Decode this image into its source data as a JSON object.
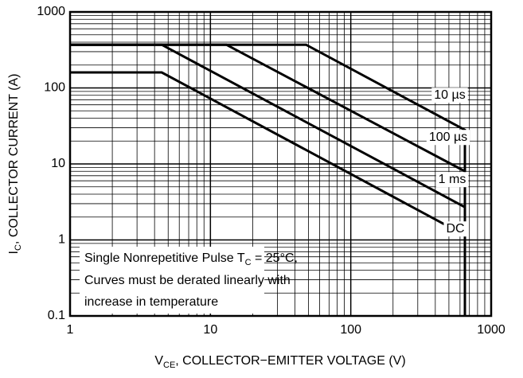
{
  "chart_data": {
    "type": "line",
    "xlabel": [
      "V",
      "CE",
      ", COLLECTOR−EMITTER VOLTAGE (V)"
    ],
    "ylabel": [
      "I",
      "C",
      ", COLLECTOR CURRENT (A)"
    ],
    "annotation": [
      [
        "Single Nonrepetitive Pulse T",
        "C",
        " = 25°C,"
      ],
      [
        "Curves must be derated linearly with"
      ],
      [
        "increase in temperature"
      ]
    ],
    "xlim": [
      1,
      1000
    ],
    "ylim": [
      0.1,
      1000
    ],
    "xticks": [
      1,
      10,
      100,
      1000
    ],
    "yticks": [
      0.1,
      1,
      10,
      100,
      1000
    ],
    "xlog": true,
    "ylog": true,
    "grid": true,
    "series": [
      {
        "name": "10 µs",
        "color": "#000000",
        "x": [
          1,
          48,
          650,
          650
        ],
        "values": [
          370,
          370,
          28,
          0.1
        ]
      },
      {
        "name": "100 µs",
        "color": "#000000",
        "x": [
          1,
          13,
          650
        ],
        "values": [
          370,
          370,
          8
        ]
      },
      {
        "name": "1 ms",
        "color": "#000000",
        "x": [
          1,
          4.5,
          650
        ],
        "values": [
          370,
          370,
          2.7
        ]
      },
      {
        "name": "DC",
        "color": "#000000",
        "x": [
          1,
          4.5,
          650
        ],
        "values": [
          160,
          160,
          1.15
        ]
      }
    ]
  }
}
